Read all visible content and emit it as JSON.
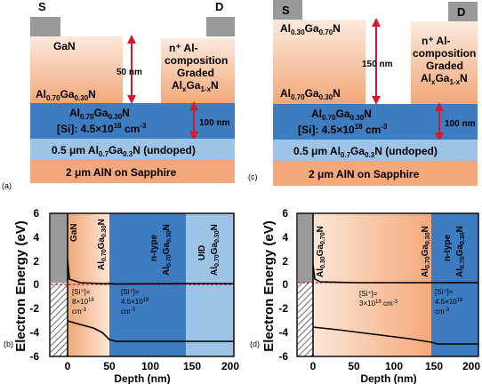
{
  "panel_a": {
    "label": "(a)",
    "source": "S",
    "drain": "D",
    "barrier_top": "GaN",
    "barrier_bottom_base": "Al",
    "barrier_bottom_sub1": "0.70",
    "barrier_bottom_mid": "Ga",
    "barrier_bottom_sub2": "0.30",
    "barrier_bottom_end": "N",
    "gap": "50 nm",
    "contact_l1": "n⁺ Al-",
    "contact_l2": "composition",
    "contact_l3": "Graded",
    "contact_l4_base": "Al",
    "contact_l4_sub1": "x",
    "contact_l4_mid": "Ga",
    "contact_l4_sub2": "1-x",
    "contact_l4_end": "N",
    "channel_base": "Al",
    "channel_sub1": "0.70",
    "channel_mid": "Ga",
    "channel_sub2": "0.30",
    "channel_end": "N",
    "doping_text": "[Si]: 4.5×10",
    "doping_exp": "18",
    "doping_unit": " cm",
    "doping_unit_exp": "-3",
    "channel_thickness": "100 nm",
    "undoped_pre": "0.5 μm Al",
    "undoped_sub1": "0.7",
    "undoped_mid": "Ga",
    "undoped_sub2": "0.3",
    "undoped_end": "N (undoped)",
    "substrate": "2 μm AlN on Sapphire"
  },
  "panel_c": {
    "label": "(c)",
    "source": "S",
    "drain": "D",
    "barrier_top_base": "Al",
    "barrier_top_sub1": "0.30",
    "barrier_top_mid": "Ga",
    "barrier_top_sub2": "0.70",
    "barrier_top_end": "N",
    "barrier_bottom_base": "Al",
    "barrier_bottom_sub1": "0.70",
    "barrier_bottom_mid": "Ga",
    "barrier_bottom_sub2": "0.30",
    "barrier_bottom_end": "N",
    "gap": "150 nm",
    "contact_l1": "n⁺ Al-",
    "contact_l2": "composition",
    "contact_l3": "Graded",
    "contact_l4_base": "Al",
    "contact_l4_sub1": "x",
    "contact_l4_mid": "Ga",
    "contact_l4_sub2": "1-x",
    "contact_l4_end": "N",
    "channel_base": "Al",
    "channel_sub1": "0.70",
    "channel_mid": "Ga",
    "channel_sub2": "0.30",
    "channel_end": "N",
    "doping_text": "[Si]: 4.5×10",
    "doping_exp": "18",
    "doping_unit": " cm",
    "doping_unit_exp": "-3",
    "channel_thickness": "100 nm",
    "undoped_pre": "0.5 μm Al",
    "undoped_sub1": "0.7",
    "undoped_mid": "Ga",
    "undoped_sub2": "0.3",
    "undoped_end": "N (undoped)",
    "substrate": "2 μm AlN on Sapphire"
  },
  "panel_b": {
    "label": "(b)",
    "ylabel": "Electron Energy (eV)",
    "xlabel": "Depth (nm)",
    "yticks": [
      "6",
      "4",
      "2",
      "0",
      "-2",
      "-4",
      "-6"
    ],
    "xticks": [
      "0",
      "50",
      "100",
      "150",
      "200"
    ],
    "region1": "GaN",
    "region2_base": "Al",
    "region2_sub1": "0.70",
    "region2_mid": "Ga",
    "region2_sub2": "0.30",
    "region2_end": "N",
    "region3_l1": "n-type",
    "region3_base": "Al",
    "region3_sub1": "0.70",
    "region3_mid": "Ga",
    "region3_sub2": "0.30",
    "region3_end": "N",
    "region4_l1": "UID",
    "region4_base": "Al",
    "region4_sub1": "0.70",
    "region4_mid": "Ga",
    "region4_sub2": "0.30",
    "region4_end": "N",
    "dop1_l1": "[Si⁺]=",
    "dop1_l2": "8×10",
    "dop1_l2_exp": "18",
    "dop1_l3": "cm",
    "dop1_l3_exp": "-3",
    "dop2_l1": "[Si⁺]=",
    "dop2_l2": "4.5×10",
    "dop2_l2_exp": "18",
    "dop2_l3": "cm",
    "dop2_l3_exp": "-3"
  },
  "panel_d": {
    "label": "(d)",
    "ylabel": "Electron Energy (eV)",
    "xlabel": "Depth (nm)",
    "yticks": [
      "6",
      "4",
      "2",
      "0",
      "-2",
      "-4",
      "-6"
    ],
    "xticks": [
      "0",
      "50",
      "100",
      "150",
      "200"
    ],
    "region1_base": "Al",
    "region1_sub1": "0.30",
    "region1_mid": "Ga",
    "region1_sub2": "0.70",
    "region1_end": "N",
    "region2_base": "Al",
    "region2_sub1": "0.70",
    "region2_mid": "Ga",
    "region2_sub2": "0.30",
    "region2_end": "N",
    "region3_l1": "n-type",
    "region3_base": "Al",
    "region3_sub1": "0.70",
    "region3_mid": "Ga",
    "region3_sub2": "0.30",
    "region3_end": "N",
    "dop1_l1": "[Si⁺]=",
    "dop1_l2": "3×10",
    "dop1_l2_exp": "18",
    "dop1_l3": "cm",
    "dop1_l3_exp": "-3",
    "dop2_l1": "[Si⁺]=",
    "dop2_l2": "4.5×10",
    "dop2_l2_exp": "18",
    "dop2_l3": "cm",
    "dop2_l3_exp": "-3"
  },
  "colors": {
    "contact_gray": "#999999",
    "orange_light": "#fbe2d1",
    "orange_mid": "#f4b183",
    "channel_blue": "#3d7cc0",
    "undoped_blue": "#9dc3e6",
    "substrate_orange": "#f4a77a",
    "arrow_red": "#d8192b"
  }
}
